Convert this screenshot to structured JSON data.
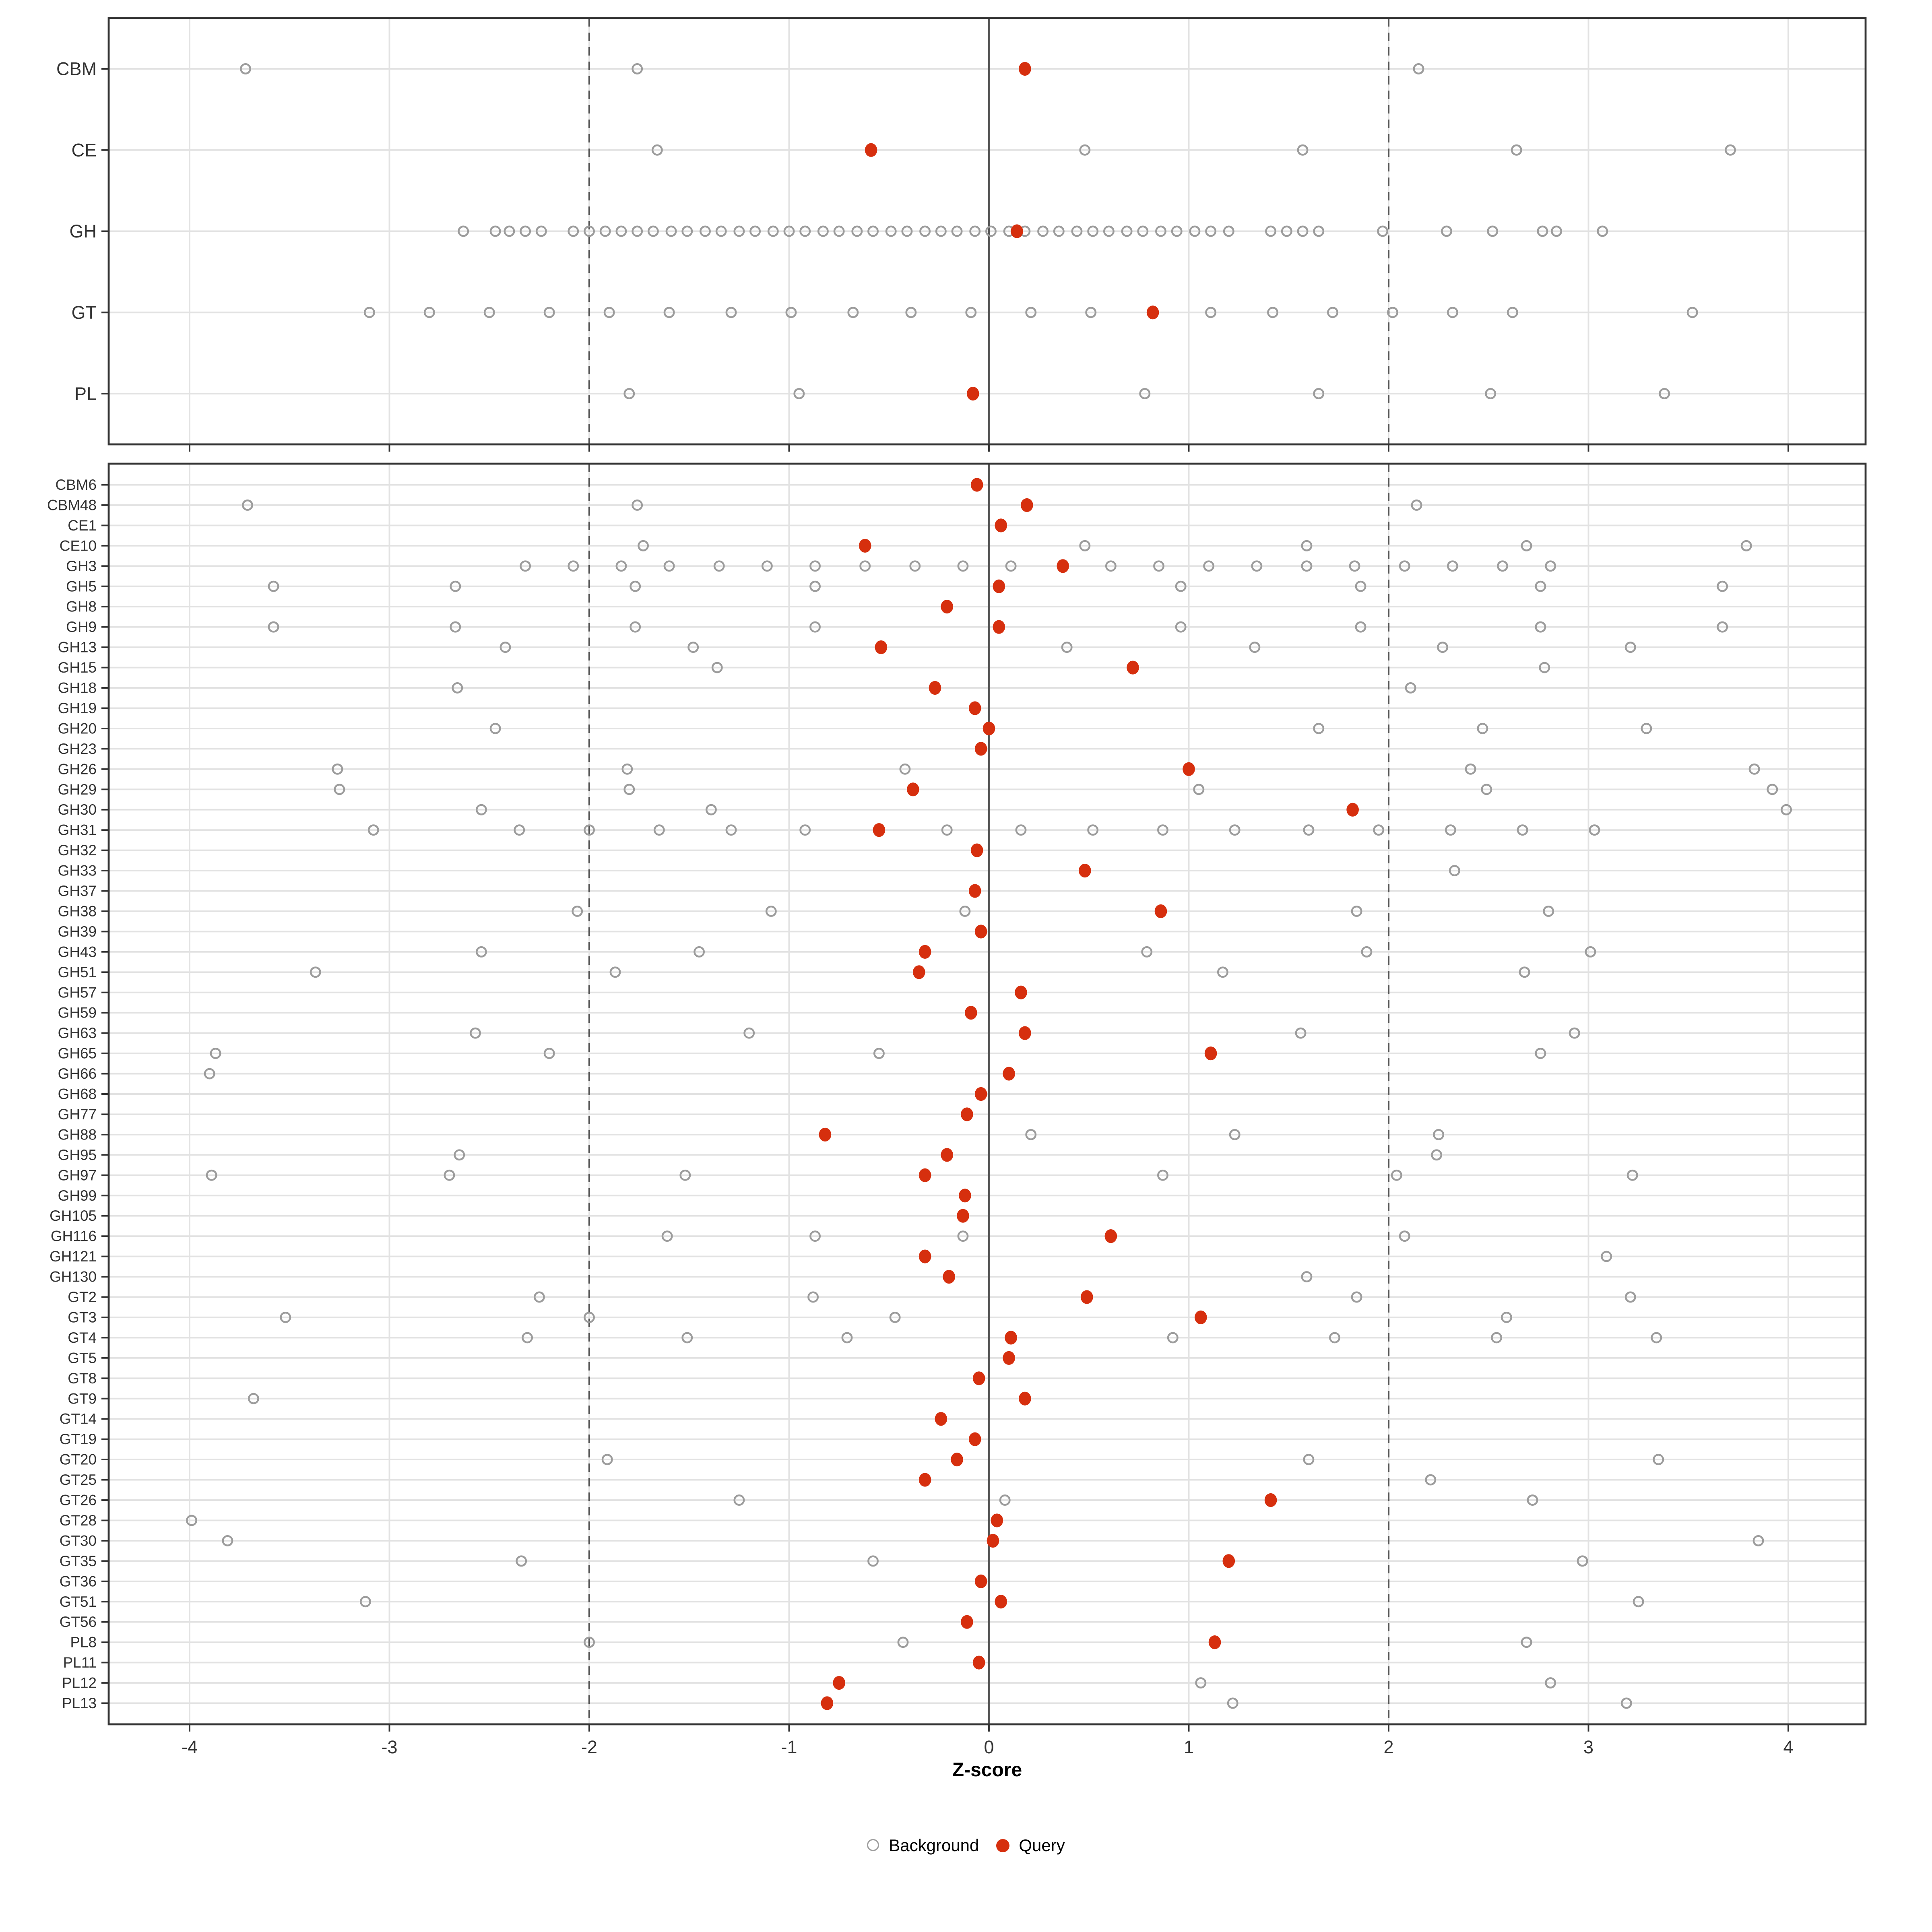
{
  "figure": {
    "xaxis_label": "Z-score",
    "legend": {
      "background_label": "Background",
      "query_label": "Query"
    }
  },
  "colors": {
    "query": "#D62F0E",
    "background_stroke": "#9C9C9C",
    "grid": "#E2E2E2",
    "reference_line": "#555555",
    "panel_border": "#333333",
    "axis_text": "#333333",
    "tick_mark": "#333333"
  },
  "chart_data": {
    "type": "scatter",
    "title": "",
    "xlabel": "Z-score",
    "ylabel": "",
    "x_ticks": [
      -4,
      -3,
      -2,
      -1,
      0,
      1,
      2,
      3,
      4
    ],
    "x_range": [
      -4.4,
      4.4
    ],
    "grid": "on",
    "legend_position": "bottom",
    "reference_lines": {
      "solid": [
        0
      ],
      "dashed": [
        -2,
        2
      ]
    },
    "series_names": [
      "Background",
      "Query"
    ],
    "panels": [
      {
        "name": "classes",
        "rows": [
          {
            "label": "CBM",
            "query": 0.18,
            "background": [
              -3.72,
              -1.76,
              2.15
            ]
          },
          {
            "label": "CE",
            "query": -0.59,
            "background": [
              -1.66,
              0.48,
              1.57,
              2.64,
              3.71
            ]
          },
          {
            "label": "GH",
            "query": 0.14,
            "background": [
              -2.63,
              -2.47,
              -2.4,
              -2.32,
              -2.24,
              -2.08,
              -2.0,
              -1.92,
              -1.84,
              -1.76,
              -1.68,
              -1.59,
              -1.51,
              -1.42,
              -1.34,
              -1.25,
              -1.17,
              -1.08,
              -1.0,
              -0.92,
              -0.83,
              -0.75,
              -0.66,
              -0.58,
              -0.49,
              -0.41,
              -0.32,
              -0.24,
              -0.16,
              -0.07,
              0.01,
              0.1,
              0.18,
              0.27,
              0.35,
              0.44,
              0.52,
              0.6,
              0.69,
              0.77,
              0.86,
              0.94,
              1.03,
              1.11,
              1.2,
              1.41,
              1.49,
              1.57,
              1.65,
              1.97,
              2.29,
              2.52,
              2.77,
              2.84,
              3.07
            ]
          },
          {
            "label": "GT",
            "query": 0.82,
            "background": [
              -3.1,
              -2.8,
              -2.5,
              -2.2,
              -1.9,
              -1.6,
              -1.29,
              -0.99,
              -0.68,
              -0.39,
              -0.09,
              0.21,
              0.51,
              1.11,
              1.42,
              1.72,
              2.02,
              2.32,
              2.62,
              3.52
            ]
          },
          {
            "label": "PL",
            "query": -0.08,
            "background": [
              -1.8,
              -0.95,
              0.78,
              1.65,
              2.51,
              3.38
            ]
          }
        ]
      },
      {
        "name": "families",
        "rows": [
          {
            "label": "CBM6",
            "query": -0.06,
            "background": []
          },
          {
            "label": "CBM48",
            "query": 0.19,
            "background": [
              -3.71,
              -1.76,
              2.14
            ]
          },
          {
            "label": "CE1",
            "query": 0.06,
            "background": []
          },
          {
            "label": "CE10",
            "query": -0.62,
            "background": [
              -1.73,
              0.48,
              1.59,
              2.69,
              3.79
            ]
          },
          {
            "label": "GH3",
            "query": 0.37,
            "background": [
              -2.32,
              -2.08,
              -1.84,
              -1.6,
              -1.35,
              -1.11,
              -0.87,
              -0.62,
              -0.37,
              -0.13,
              0.11,
              0.61,
              0.85,
              1.1,
              1.34,
              1.59,
              1.83,
              2.08,
              2.32,
              2.57,
              2.81
            ]
          },
          {
            "label": "GH5",
            "query": 0.05,
            "background": [
              -3.58,
              -2.67,
              -1.77,
              -0.87,
              0.96,
              1.86,
              2.76,
              3.67
            ]
          },
          {
            "label": "GH8",
            "query": -0.21,
            "background": []
          },
          {
            "label": "GH9",
            "query": 0.05,
            "background": [
              -3.58,
              -2.67,
              -1.77,
              -0.87,
              0.96,
              1.86,
              2.76,
              3.67
            ]
          },
          {
            "label": "GH13",
            "query": -0.54,
            "background": [
              -2.42,
              -1.48,
              0.39,
              1.33,
              2.27,
              3.21
            ]
          },
          {
            "label": "GH15",
            "query": 0.72,
            "background": [
              -1.36,
              2.78
            ]
          },
          {
            "label": "GH18",
            "query": -0.27,
            "background": [
              -2.66,
              2.11
            ]
          },
          {
            "label": "GH19",
            "query": -0.07,
            "background": []
          },
          {
            "label": "GH20",
            "query": 0.0,
            "background": [
              -2.47,
              1.65,
              2.47,
              3.29
            ]
          },
          {
            "label": "GH23",
            "query": -0.04,
            "background": []
          },
          {
            "label": "GH26",
            "query": 1.0,
            "background": [
              -3.26,
              -1.81,
              -0.42,
              2.41,
              3.83
            ]
          },
          {
            "label": "GH29",
            "query": -0.38,
            "background": [
              -3.25,
              -1.8,
              1.05,
              2.49,
              3.92
            ]
          },
          {
            "label": "GH30",
            "query": 1.82,
            "background": [
              -2.54,
              -1.39,
              3.99
            ]
          },
          {
            "label": "GH31",
            "query": -0.55,
            "background": [
              -3.08,
              -2.35,
              -2.0,
              -1.65,
              -1.29,
              -0.92,
              -0.21,
              0.16,
              0.52,
              0.87,
              1.23,
              1.6,
              1.95,
              2.31,
              2.67,
              3.03
            ]
          },
          {
            "label": "GH32",
            "query": -0.06,
            "background": []
          },
          {
            "label": "GH33",
            "query": 0.48,
            "background": [
              2.33
            ]
          },
          {
            "label": "GH37",
            "query": -0.07,
            "background": []
          },
          {
            "label": "GH38",
            "query": 0.86,
            "background": [
              -2.06,
              -1.09,
              -0.12,
              1.84,
              2.8
            ]
          },
          {
            "label": "GH39",
            "query": -0.04,
            "background": []
          },
          {
            "label": "GH43",
            "query": -0.32,
            "background": [
              -2.54,
              -1.45,
              0.79,
              1.89,
              3.01
            ]
          },
          {
            "label": "GH51",
            "query": -0.35,
            "background": [
              -3.37,
              -1.87,
              1.17,
              2.68
            ]
          },
          {
            "label": "GH57",
            "query": 0.16,
            "background": []
          },
          {
            "label": "GH59",
            "query": -0.09,
            "background": []
          },
          {
            "label": "GH63",
            "query": 0.18,
            "background": [
              -2.57,
              -1.2,
              1.56,
              2.93
            ]
          },
          {
            "label": "GH65",
            "query": 1.11,
            "background": [
              -3.87,
              -2.2,
              -0.55,
              2.76
            ]
          },
          {
            "label": "GH66",
            "query": 0.1,
            "background": [
              -3.9
            ]
          },
          {
            "label": "GH68",
            "query": -0.04,
            "background": []
          },
          {
            "label": "GH77",
            "query": -0.11,
            "background": []
          },
          {
            "label": "GH88",
            "query": -0.82,
            "background": [
              0.21,
              1.23,
              2.25
            ]
          },
          {
            "label": "GH95",
            "query": -0.21,
            "background": [
              -2.65,
              2.24
            ]
          },
          {
            "label": "GH97",
            "query": -0.32,
            "background": [
              -3.89,
              -2.7,
              -1.52,
              0.87,
              2.04,
              3.22
            ]
          },
          {
            "label": "GH99",
            "query": -0.12,
            "background": []
          },
          {
            "label": "GH105",
            "query": -0.13,
            "background": []
          },
          {
            "label": "GH116",
            "query": 0.61,
            "background": [
              -1.61,
              -0.87,
              -0.13,
              2.08
            ]
          },
          {
            "label": "GH121",
            "query": -0.32,
            "background": [
              3.09
            ]
          },
          {
            "label": "GH130",
            "query": -0.2,
            "background": [
              1.59
            ]
          },
          {
            "label": "GT2",
            "query": 0.49,
            "background": [
              -2.25,
              -0.88,
              1.84,
              3.21
            ]
          },
          {
            "label": "GT3",
            "query": 1.06,
            "background": [
              -3.52,
              -2.0,
              -0.47,
              2.59
            ]
          },
          {
            "label": "GT4",
            "query": 0.11,
            "background": [
              -2.31,
              -1.51,
              -0.71,
              0.92,
              1.73,
              2.54,
              3.34
            ]
          },
          {
            "label": "GT5",
            "query": 0.1,
            "background": []
          },
          {
            "label": "GT8",
            "query": -0.05,
            "background": []
          },
          {
            "label": "GT9",
            "query": 0.18,
            "background": [
              -3.68
            ]
          },
          {
            "label": "GT14",
            "query": -0.24,
            "background": []
          },
          {
            "label": "GT19",
            "query": -0.07,
            "background": []
          },
          {
            "label": "GT20",
            "query": -0.16,
            "background": [
              -1.91,
              1.6,
              3.35
            ]
          },
          {
            "label": "GT25",
            "query": -0.32,
            "background": [
              2.21
            ]
          },
          {
            "label": "GT26",
            "query": 1.41,
            "background": [
              -1.25,
              0.08,
              2.72
            ]
          },
          {
            "label": "GT28",
            "query": 0.04,
            "background": [
              -3.99
            ]
          },
          {
            "label": "GT30",
            "query": 0.02,
            "background": [
              -3.81,
              3.85
            ]
          },
          {
            "label": "GT35",
            "query": 1.2,
            "background": [
              -2.34,
              -0.58,
              2.97
            ]
          },
          {
            "label": "GT36",
            "query": -0.04,
            "background": []
          },
          {
            "label": "GT51",
            "query": 0.06,
            "background": [
              -3.12,
              3.25
            ]
          },
          {
            "label": "GT56",
            "query": -0.11,
            "background": []
          },
          {
            "label": "PL8",
            "query": 1.13,
            "background": [
              -2.0,
              -0.43,
              2.69
            ]
          },
          {
            "label": "PL11",
            "query": -0.05,
            "background": []
          },
          {
            "label": "PL12",
            "query": -0.75,
            "background": [
              1.06,
              2.81
            ]
          },
          {
            "label": "PL13",
            "query": -0.81,
            "background": [
              1.22,
              3.19
            ]
          }
        ]
      }
    ]
  }
}
